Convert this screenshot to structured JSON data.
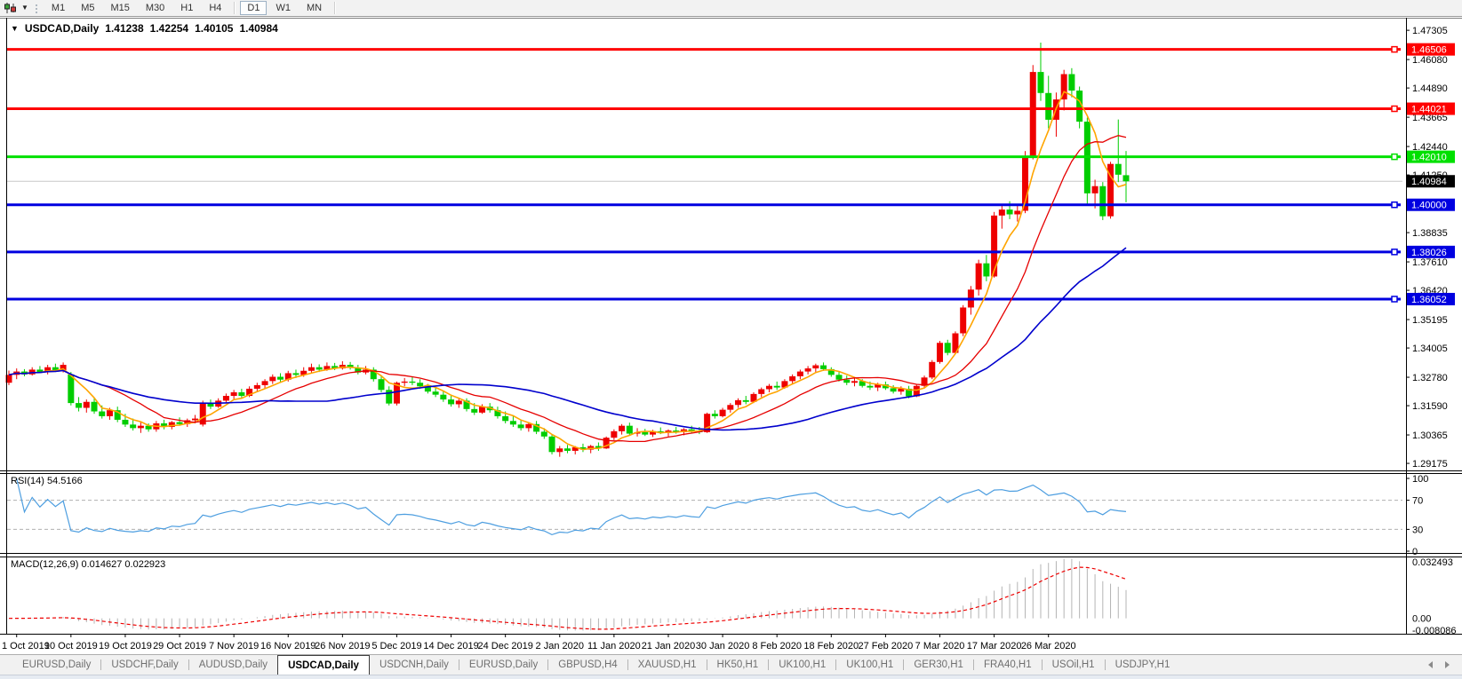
{
  "toolbar": {
    "chart_icon": "candlestick-chart-icon",
    "dropdown_icon": "chevron-down-icon",
    "timeframes": [
      "M1",
      "M5",
      "M15",
      "M30",
      "H1",
      "H4",
      "D1",
      "W1",
      "MN"
    ],
    "active_timeframe": "D1"
  },
  "chart_title": {
    "symbol_label": "USDCAD,Daily",
    "open": "1.41238",
    "high": "1.42254",
    "low": "1.40105",
    "close": "1.40984"
  },
  "indicators": {
    "rsi_label": "RSI(14) 54.5166",
    "macd_label": "MACD(12,26,9) 0.014627 0.022923"
  },
  "tabs": {
    "items": [
      "EURUSD,Daily",
      "USDCHF,Daily",
      "AUDUSD,Daily",
      "USDCAD,Daily",
      "USDCNH,Daily",
      "EURUSD,Daily",
      "GBPUSD,H4",
      "XAUUSD,H1",
      "HK50,H1",
      "UK100,H1",
      "UK100,H1",
      "GER30,H1",
      "FRA40,H1",
      "USOil,H1",
      "USDJPY,H1"
    ],
    "active_index": 3
  },
  "chart_data": {
    "type": "candlestick",
    "symbol": "USDCAD",
    "timeframe": "Daily",
    "up_color": "#ee0000",
    "down_color": "#00cd00",
    "current_bar": {
      "open": 1.41238,
      "high": 1.42254,
      "low": 1.40105,
      "close": 1.40984
    },
    "ylim": [
      1.2888,
      1.4783
    ],
    "price_axis_ticks": [
      "1.47305",
      "1.46080",
      "1.44890",
      "1.43665",
      "1.42440",
      "1.41250",
      "1.38835",
      "1.37610",
      "1.36420",
      "1.35195",
      "1.34005",
      "1.32780",
      "1.31590",
      "1.30365",
      "1.29175"
    ],
    "x_axis_dates": [
      "1 Oct 2019",
      "10 Oct 2019",
      "19 Oct 2019",
      "29 Oct 2019",
      "7 Nov 2019",
      "16 Nov 2019",
      "26 Nov 2019",
      "5 Dec 2019",
      "14 Dec 2019",
      "24 Dec 2019",
      "2 Jan 2020",
      "11 Jan 2020",
      "21 Jan 2020",
      "30 Jan 2020",
      "8 Feb 2020",
      "18 Feb 2020",
      "27 Feb 2020",
      "7 Mar 2020",
      "17 Mar 2020",
      "26 Mar 2020"
    ],
    "x_tick_bar_interval": 7,
    "horizontal_lines": [
      {
        "price": 1.46506,
        "label": "1.46506",
        "color": "#ff0000"
      },
      {
        "price": 1.44021,
        "label": "1.44021",
        "color": "#ff0000"
      },
      {
        "price": 1.4201,
        "label": "1.42010",
        "color": "#00e000"
      },
      {
        "price": 1.4,
        "label": "1.40000",
        "color": "#0000e0"
      },
      {
        "price": 1.38026,
        "label": "1.38026",
        "color": "#0000e0"
      },
      {
        "price": 1.36052,
        "label": "1.36052",
        "color": "#0000e0"
      }
    ],
    "bid_line": {
      "price": 1.40984,
      "label": "1.40984",
      "line_color": "#c8c8c8",
      "label_bg": "#000000"
    },
    "moving_averages": [
      {
        "period": 5,
        "method": "sma",
        "color": "#ffa500",
        "width": 1.6
      },
      {
        "period": 13,
        "method": "sma",
        "color": "#e60000",
        "width": 1.3
      },
      {
        "period": 34,
        "method": "sma",
        "color": "#0000cd",
        "width": 1.6
      }
    ],
    "rsi": {
      "period": 14,
      "current": 54.5166,
      "color": "#4d9ee0",
      "levels": [
        "100",
        "70",
        "30",
        "0"
      ],
      "dashed_levels": [
        70,
        30
      ]
    },
    "macd": {
      "fast": 12,
      "slow": 26,
      "signal": 9,
      "main_current": 0.014627,
      "signal_current": 0.022923,
      "ylim": [
        -0.008086,
        0.032493
      ],
      "axis_ticks": [
        "0.032493",
        "0.00",
        "-0.008086"
      ],
      "histogram_color": "#b4b4b4",
      "signal_color": "#ee0000"
    },
    "ohlc": [
      [
        1.3255,
        1.3306,
        1.3245,
        1.3288
      ],
      [
        1.3288,
        1.3315,
        1.327,
        1.3302
      ],
      [
        1.3302,
        1.3312,
        1.3282,
        1.329
      ],
      [
        1.329,
        1.332,
        1.3285,
        1.331
      ],
      [
        1.331,
        1.3325,
        1.3295,
        1.33
      ],
      [
        1.33,
        1.333,
        1.329,
        1.332
      ],
      [
        1.332,
        1.3335,
        1.33,
        1.3308
      ],
      [
        1.3308,
        1.334,
        1.3298,
        1.333
      ],
      [
        1.329,
        1.33,
        1.316,
        1.317
      ],
      [
        1.317,
        1.3195,
        1.3135,
        1.315
      ],
      [
        1.315,
        1.3185,
        1.313,
        1.3175
      ],
      [
        1.3175,
        1.319,
        1.3125,
        1.3135
      ],
      [
        1.3135,
        1.316,
        1.3105,
        1.3115
      ],
      [
        1.3115,
        1.315,
        1.31,
        1.314
      ],
      [
        1.314,
        1.3155,
        1.309,
        1.31
      ],
      [
        1.31,
        1.3125,
        1.307,
        1.308
      ],
      [
        1.308,
        1.3105,
        1.3055,
        1.3065
      ],
      [
        1.3065,
        1.309,
        1.3045,
        1.3075
      ],
      [
        1.3075,
        1.3085,
        1.305,
        1.306
      ],
      [
        1.306,
        1.3095,
        1.305,
        1.3085
      ],
      [
        1.3085,
        1.31,
        1.306,
        1.307
      ],
      [
        1.307,
        1.3095,
        1.306,
        1.309
      ],
      [
        1.309,
        1.311,
        1.3075,
        1.3082
      ],
      [
        1.3082,
        1.3105,
        1.307,
        1.3098
      ],
      [
        1.3098,
        1.312,
        1.3085,
        1.3105
      ],
      [
        1.308,
        1.318,
        1.3072,
        1.3172
      ],
      [
        1.3172,
        1.3185,
        1.3145,
        1.3155
      ],
      [
        1.3155,
        1.319,
        1.315,
        1.318
      ],
      [
        1.318,
        1.321,
        1.317,
        1.32
      ],
      [
        1.32,
        1.3225,
        1.3185,
        1.3215
      ],
      [
        1.3215,
        1.323,
        1.319,
        1.32
      ],
      [
        1.32,
        1.324,
        1.3195,
        1.323
      ],
      [
        1.323,
        1.3255,
        1.3215,
        1.3245
      ],
      [
        1.3245,
        1.327,
        1.323,
        1.3262
      ],
      [
        1.3262,
        1.329,
        1.325,
        1.328
      ],
      [
        1.328,
        1.3295,
        1.3255,
        1.3268
      ],
      [
        1.3268,
        1.3305,
        1.326,
        1.3295
      ],
      [
        1.3295,
        1.331,
        1.3275,
        1.3288
      ],
      [
        1.3288,
        1.332,
        1.328,
        1.3305
      ],
      [
        1.3305,
        1.3335,
        1.3295,
        1.332
      ],
      [
        1.332,
        1.3332,
        1.33,
        1.331
      ],
      [
        1.331,
        1.334,
        1.3305,
        1.3325
      ],
      [
        1.3325,
        1.3338,
        1.3308,
        1.3315
      ],
      [
        1.3315,
        1.3345,
        1.331,
        1.333
      ],
      [
        1.333,
        1.3342,
        1.331,
        1.3318
      ],
      [
        1.3318,
        1.333,
        1.329,
        1.3298
      ],
      [
        1.3298,
        1.3325,
        1.329,
        1.331
      ],
      [
        1.331,
        1.332,
        1.326,
        1.327
      ],
      [
        1.327,
        1.3285,
        1.3215,
        1.3225
      ],
      [
        1.3225,
        1.324,
        1.316,
        1.3168
      ],
      [
        1.3168,
        1.326,
        1.316,
        1.3255
      ],
      [
        1.3255,
        1.3275,
        1.324,
        1.326
      ],
      [
        1.326,
        1.328,
        1.3245,
        1.3255
      ],
      [
        1.3255,
        1.327,
        1.323,
        1.324
      ],
      [
        1.324,
        1.325,
        1.321,
        1.3218
      ],
      [
        1.3218,
        1.3235,
        1.3195,
        1.3205
      ],
      [
        1.3205,
        1.322,
        1.3175,
        1.3185
      ],
      [
        1.3185,
        1.32,
        1.3155,
        1.3165
      ],
      [
        1.3165,
        1.319,
        1.315,
        1.318
      ],
      [
        1.318,
        1.319,
        1.3135,
        1.3145
      ],
      [
        1.3145,
        1.317,
        1.312,
        1.313
      ],
      [
        1.313,
        1.3165,
        1.3125,
        1.3155
      ],
      [
        1.3155,
        1.317,
        1.313,
        1.314
      ],
      [
        1.314,
        1.3155,
        1.3105,
        1.3115
      ],
      [
        1.3115,
        1.3135,
        1.3085,
        1.3095
      ],
      [
        1.3095,
        1.3115,
        1.307,
        1.308
      ],
      [
        1.308,
        1.31,
        1.3055,
        1.3065
      ],
      [
        1.3065,
        1.309,
        1.305,
        1.3082
      ],
      [
        1.3082,
        1.3095,
        1.304,
        1.305
      ],
      [
        1.305,
        1.3065,
        1.302,
        1.303
      ],
      [
        1.303,
        1.304,
        1.2955,
        1.2965
      ],
      [
        1.2965,
        1.299,
        1.2945,
        1.298
      ],
      [
        1.298,
        1.2995,
        1.296,
        1.297
      ],
      [
        1.297,
        1.299,
        1.2955,
        1.2985
      ],
      [
        1.2985,
        1.3,
        1.2965,
        1.2975
      ],
      [
        1.2975,
        1.2995,
        1.296,
        1.299
      ],
      [
        1.299,
        1.3005,
        1.297,
        1.298
      ],
      [
        1.298,
        1.303,
        1.2978,
        1.3025
      ],
      [
        1.3025,
        1.306,
        1.3015,
        1.3052
      ],
      [
        1.3052,
        1.3082,
        1.3038,
        1.3075
      ],
      [
        1.3075,
        1.3088,
        1.3035,
        1.3042
      ],
      [
        1.3042,
        1.3065,
        1.303,
        1.3048
      ],
      [
        1.3048,
        1.3062,
        1.3032,
        1.3038
      ],
      [
        1.3038,
        1.3058,
        1.3028,
        1.3052
      ],
      [
        1.3052,
        1.3068,
        1.304,
        1.3045
      ],
      [
        1.3045,
        1.306,
        1.303,
        1.3055
      ],
      [
        1.3055,
        1.307,
        1.3042,
        1.3048
      ],
      [
        1.3048,
        1.3065,
        1.3035,
        1.306
      ],
      [
        1.306,
        1.3075,
        1.3045,
        1.3052
      ],
      [
        1.3052,
        1.307,
        1.304,
        1.3048
      ],
      [
        1.3048,
        1.313,
        1.3045,
        1.3125
      ],
      [
        1.3125,
        1.314,
        1.3105,
        1.3115
      ],
      [
        1.3115,
        1.315,
        1.311,
        1.3142
      ],
      [
        1.3142,
        1.317,
        1.313,
        1.3162
      ],
      [
        1.3162,
        1.319,
        1.315,
        1.3182
      ],
      [
        1.3182,
        1.32,
        1.3165,
        1.3175
      ],
      [
        1.3175,
        1.3215,
        1.317,
        1.3208
      ],
      [
        1.3208,
        1.3235,
        1.3195,
        1.3228
      ],
      [
        1.3228,
        1.325,
        1.3215,
        1.3242
      ],
      [
        1.3242,
        1.326,
        1.3225,
        1.3235
      ],
      [
        1.3235,
        1.327,
        1.323,
        1.3262
      ],
      [
        1.3262,
        1.329,
        1.325,
        1.3282
      ],
      [
        1.3282,
        1.331,
        1.327,
        1.3302
      ],
      [
        1.3302,
        1.3325,
        1.329,
        1.3315
      ],
      [
        1.3315,
        1.3335,
        1.33,
        1.3328
      ],
      [
        1.3328,
        1.334,
        1.3305,
        1.3312
      ],
      [
        1.3312,
        1.332,
        1.328,
        1.3288
      ],
      [
        1.3288,
        1.33,
        1.326,
        1.3268
      ],
      [
        1.3268,
        1.3285,
        1.3245,
        1.3255
      ],
      [
        1.3255,
        1.3275,
        1.324,
        1.3262
      ],
      [
        1.3262,
        1.327,
        1.3235,
        1.3242
      ],
      [
        1.3242,
        1.326,
        1.3225,
        1.3235
      ],
      [
        1.3235,
        1.3255,
        1.322,
        1.3248
      ],
      [
        1.3248,
        1.326,
        1.3225,
        1.3232
      ],
      [
        1.3232,
        1.3245,
        1.321,
        1.3218
      ],
      [
        1.3218,
        1.324,
        1.3205,
        1.323
      ],
      [
        1.323,
        1.3242,
        1.319,
        1.3198
      ],
      [
        1.3198,
        1.325,
        1.3195,
        1.3242
      ],
      [
        1.3242,
        1.3285,
        1.3235,
        1.3277
      ],
      [
        1.3277,
        1.335,
        1.327,
        1.3342
      ],
      [
        1.3342,
        1.343,
        1.3335,
        1.3422
      ],
      [
        1.3422,
        1.3435,
        1.337,
        1.338
      ],
      [
        1.338,
        1.347,
        1.3375,
        1.3462
      ],
      [
        1.3462,
        1.358,
        1.345,
        1.357
      ],
      [
        1.357,
        1.366,
        1.354,
        1.3645
      ],
      [
        1.3645,
        1.377,
        1.362,
        1.3755
      ],
      [
        1.3755,
        1.379,
        1.368,
        1.37
      ],
      [
        1.37,
        1.397,
        1.3695,
        1.3955
      ],
      [
        1.3955,
        1.4,
        1.39,
        1.398
      ],
      [
        1.398,
        1.4015,
        1.394,
        1.396
      ],
      [
        1.396,
        1.4,
        1.393,
        1.3975
      ],
      [
        1.3975,
        1.4225,
        1.3965,
        1.4198
      ],
      [
        1.4198,
        1.4585,
        1.419,
        1.4556
      ],
      [
        1.4556,
        1.4679,
        1.4435,
        1.4468
      ],
      [
        1.4468,
        1.454,
        1.432,
        1.4356
      ],
      [
        1.4356,
        1.447,
        1.4285,
        1.4441
      ],
      [
        1.4441,
        1.4565,
        1.4395,
        1.4547
      ],
      [
        1.4547,
        1.4572,
        1.445,
        1.4478
      ],
      [
        1.4478,
        1.4495,
        1.432,
        1.4348
      ],
      [
        1.4348,
        1.4365,
        1.4003,
        1.4048
      ],
      [
        1.4048,
        1.4105,
        1.3985,
        1.4078
      ],
      [
        1.4078,
        1.4095,
        1.3936,
        1.3952
      ],
      [
        1.3952,
        1.418,
        1.3942,
        1.4171
      ],
      [
        1.4171,
        1.4357,
        1.4095,
        1.4126
      ],
      [
        1.41238,
        1.42254,
        1.40105,
        1.40984
      ]
    ]
  }
}
